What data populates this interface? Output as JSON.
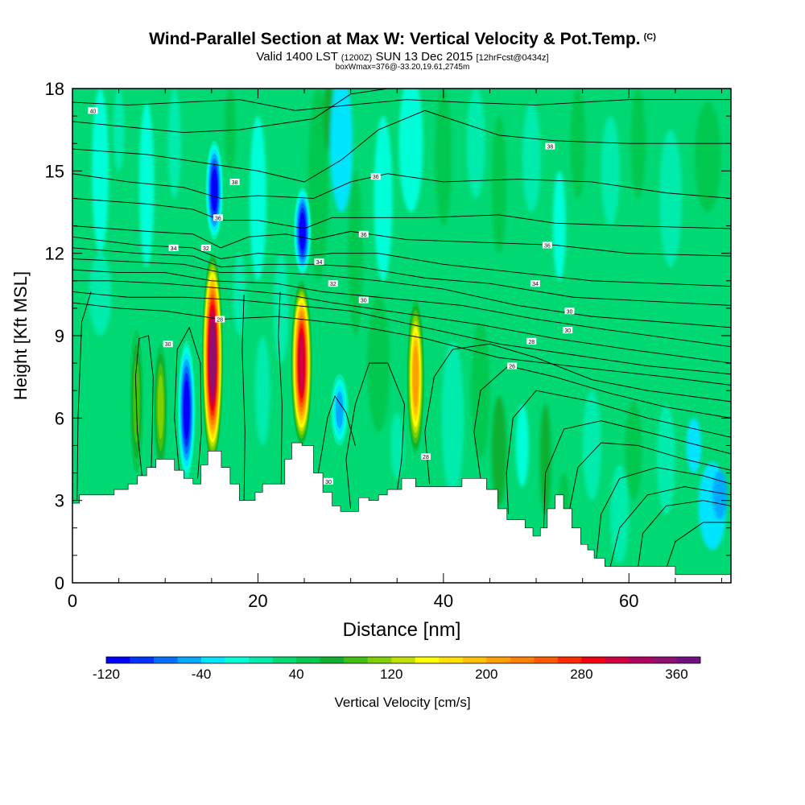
{
  "header": {
    "title": "Wind-Parallel Section at Max W: Vertical Velocity & Pot.Temp.",
    "title_mark": "(C)",
    "valid_prefix": "Valid 1400 LST",
    "valid_utc": "(1200Z)",
    "valid_date": "SUN 13 Dec 2015",
    "forecast": "[12hrFcst@0434z]",
    "boxwmax": "boxWmax=376@-33.20,19.61,2745m"
  },
  "chart_data": {
    "type": "heatmap",
    "xlabel": "Distance [nm]",
    "ylabel": "Height [Kft MSL]",
    "xlim": [
      0,
      71
    ],
    "ylim": [
      0,
      18
    ],
    "xticks": [
      0,
      20,
      40,
      60
    ],
    "yticks": [
      0,
      3,
      6,
      9,
      12,
      15,
      18
    ],
    "background_value_cm_s": 20,
    "colorbar": {
      "label": "Vertical Velocity [cm/s]",
      "tick_labels": [
        "-120",
        "-40",
        "40",
        "120",
        "200",
        "280",
        "360"
      ],
      "levels": [
        -120,
        -100,
        -80,
        -60,
        -40,
        -20,
        0,
        20,
        40,
        60,
        80,
        100,
        120,
        140,
        160,
        180,
        200,
        220,
        240,
        260,
        280,
        300,
        320,
        340,
        360,
        380
      ],
      "colors": [
        "#0000ff",
        "#0033ff",
        "#0070ff",
        "#00aaff",
        "#00e5ff",
        "#00ffd8",
        "#00ecac",
        "#00d873",
        "#00c850",
        "#10b030",
        "#40c010",
        "#80d000",
        "#c0e000",
        "#ffff00",
        "#ffe000",
        "#ffc000",
        "#ffa000",
        "#ff8000",
        "#ff5a00",
        "#ff2a00",
        "#f00010",
        "#d00040",
        "#b00060",
        "#901070",
        "#701080"
      ]
    },
    "updrafts": [
      {
        "x": 6.9,
        "z_center": 6.6,
        "half_height": 2.6,
        "max_w": 80
      },
      {
        "x": 9.5,
        "z_center": 6.4,
        "half_height": 2.3,
        "max_w": 100
      },
      {
        "x": 15.1,
        "z_center": 8.2,
        "half_height": 3.8,
        "max_w": 340
      },
      {
        "x": 24.7,
        "z_center": 8.0,
        "half_height": 3.0,
        "max_w": 300
      },
      {
        "x": 37.0,
        "z_center": 7.5,
        "half_height": 2.8,
        "max_w": 200
      }
    ],
    "downdrafts": [
      {
        "x": 12.3,
        "z_center": 6.3,
        "half_height": 2.5,
        "min_w": -110
      },
      {
        "x": 15.3,
        "z_center": 14.3,
        "half_height": 1.8,
        "min_w": -110
      },
      {
        "x": 24.8,
        "z_center": 12.8,
        "half_height": 1.6,
        "min_w": -120
      },
      {
        "x": 28.8,
        "z_center": 6.3,
        "half_height": 1.3,
        "min_w": -60
      }
    ],
    "terrain": {
      "x": [
        0,
        1.5,
        2.5,
        3.5,
        5.5,
        6.5,
        7.5,
        8.5,
        9.5,
        10.5,
        11.5,
        12.5,
        13.5,
        14.2,
        15,
        15.6,
        16.5,
        17.5,
        18.5,
        19.3,
        20.1,
        20.9,
        21.7,
        22.5,
        23.3,
        24,
        25.5,
        26.5,
        27.5,
        28.5,
        29.3,
        30.4,
        31.3,
        32.6,
        33.4,
        34.5,
        36.5,
        37.5,
        38.5,
        40,
        44,
        45.3,
        46.4,
        47.3,
        48.3,
        49.3,
        50,
        50.9,
        51.5,
        52.6,
        53.3,
        54.4,
        55.2,
        55.9,
        56.6,
        58.2,
        62,
        68,
        71
      ],
      "z": [
        2.9,
        3.2,
        3.2,
        3.2,
        3.4,
        3.6,
        3.9,
        4.2,
        4.5,
        4.5,
        4.1,
        3.8,
        3.6,
        4.3,
        4.8,
        4.8,
        4.2,
        3.6,
        3.0,
        3.0,
        3.3,
        3.6,
        3.6,
        3.6,
        4.5,
        5.1,
        5.0,
        4.0,
        3.3,
        2.8,
        2.6,
        2.6,
        3.1,
        3.0,
        3.2,
        3.4,
        3.8,
        3.5,
        3.5,
        3.5,
        3.8,
        3.4,
        2.7,
        2.3,
        2.3,
        2.0,
        1.7,
        2.0,
        2.7,
        3.2,
        2.7,
        2.0,
        1.4,
        1.2,
        0.9,
        0.6,
        0.6,
        0.3,
        0.3
      ]
    },
    "isentrope_labels": [
      "40",
      "38",
      "36",
      "34",
      "32",
      "30",
      "28",
      "26"
    ],
    "label_samples": [
      {
        "text": "40",
        "x": 2.2,
        "z": 17.2
      },
      {
        "text": "38",
        "x": 17.5,
        "z": 14.6
      },
      {
        "text": "36",
        "x": 32.7,
        "z": 14.8
      },
      {
        "text": "38",
        "x": 51.5,
        "z": 15.9
      },
      {
        "text": "36",
        "x": 15.7,
        "z": 13.3
      },
      {
        "text": "34",
        "x": 10.9,
        "z": 12.2
      },
      {
        "text": "32",
        "x": 14.4,
        "z": 12.2
      },
      {
        "text": "36",
        "x": 31.4,
        "z": 12.7
      },
      {
        "text": "36",
        "x": 51.2,
        "z": 12.3
      },
      {
        "text": "34",
        "x": 26.6,
        "z": 11.7
      },
      {
        "text": "32",
        "x": 28.1,
        "z": 10.9
      },
      {
        "text": "34",
        "x": 49.9,
        "z": 10.9
      },
      {
        "text": "30",
        "x": 31.4,
        "z": 10.3
      },
      {
        "text": "30",
        "x": 53.6,
        "z": 9.9
      },
      {
        "text": "30",
        "x": 53.4,
        "z": 9.2
      },
      {
        "text": "28",
        "x": 49.5,
        "z": 8.8
      },
      {
        "text": "26",
        "x": 47.4,
        "z": 7.9
      },
      {
        "text": "28",
        "x": 15.9,
        "z": 9.6
      },
      {
        "text": "30",
        "x": 10.3,
        "z": 8.7
      },
      {
        "text": "30",
        "x": 27.6,
        "z": 3.7
      },
      {
        "text": "28",
        "x": 38.1,
        "z": 4.6
      }
    ]
  }
}
